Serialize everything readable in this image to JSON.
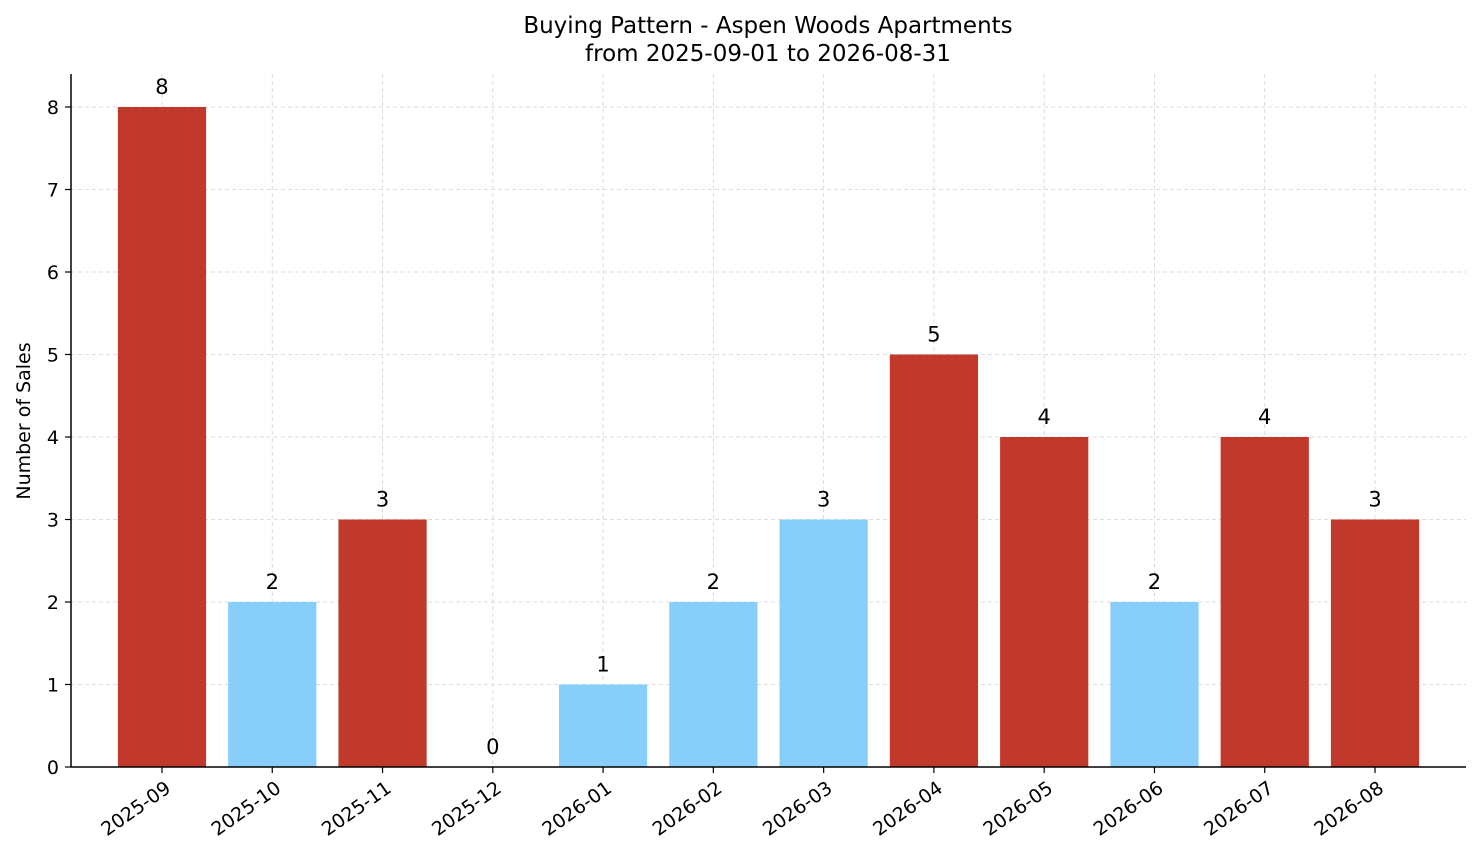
{
  "chart_data": {
    "type": "bar",
    "title": "Buying Pattern - Aspen Woods Apartments",
    "subtitle": "from 2025-09-01 to 2026-08-31",
    "xlabel": "",
    "ylabel": "Number of Sales",
    "categories": [
      "2025-09",
      "2025-10",
      "2025-11",
      "2025-12",
      "2026-01",
      "2026-02",
      "2026-03",
      "2026-04",
      "2026-05",
      "2026-06",
      "2026-07",
      "2026-08"
    ],
    "values": [
      8,
      2,
      3,
      0,
      1,
      2,
      3,
      5,
      4,
      2,
      4,
      3
    ],
    "bar_colors": [
      "#c0392b",
      "#87cefa",
      "#c0392b",
      "#87cefa",
      "#87cefa",
      "#87cefa",
      "#87cefa",
      "#c0392b",
      "#c0392b",
      "#87cefa",
      "#c0392b",
      "#c0392b"
    ],
    "ylim": [
      0,
      8.4
    ],
    "yticks": [
      0,
      1,
      2,
      3,
      4,
      5,
      6,
      7,
      8
    ],
    "grid": true,
    "data_labels": true,
    "colors": {
      "high": "#c0392b",
      "low": "#87cefa",
      "grid": "#d3d3d3",
      "axis": "#000000"
    }
  }
}
